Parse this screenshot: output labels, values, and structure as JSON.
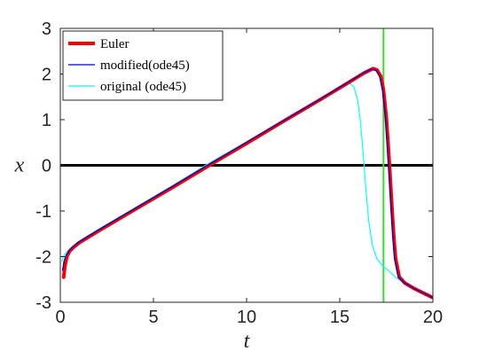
{
  "chart_data": {
    "type": "line",
    "xlabel": "t",
    "ylabel": "x",
    "xlim": [
      0,
      20
    ],
    "ylim": [
      -3,
      3
    ],
    "x_ticks": [
      0,
      5,
      10,
      15,
      20
    ],
    "y_ticks": [
      -3,
      -2,
      -1,
      0,
      1,
      2,
      3
    ],
    "x_tick_labels": [
      "0",
      "5",
      "10",
      "15",
      "20"
    ],
    "y_tick_labels": [
      "-3",
      "-2",
      "-1",
      "0",
      "1",
      "2",
      "3"
    ],
    "grid": false,
    "legend_position": "top-left",
    "series": [
      {
        "name": "Euler",
        "color": "#ff0000",
        "x": [
          0.18,
          0.25,
          0.35,
          0.5,
          0.7,
          1.0,
          2.0,
          4.0,
          6.0,
          8.0,
          10.0,
          12.0,
          14.0,
          15.5,
          16.3,
          16.8,
          17.0,
          17.2,
          17.35,
          17.5,
          17.6,
          17.7,
          17.8,
          17.9,
          18.0,
          18.2,
          18.5,
          19.0,
          19.5,
          20.0
        ],
        "y": [
          -2.45,
          -2.2,
          -2.0,
          -1.88,
          -1.8,
          -1.7,
          -1.45,
          -0.97,
          -0.49,
          0.0,
          0.48,
          0.97,
          1.45,
          1.82,
          2.02,
          2.12,
          2.09,
          1.95,
          1.65,
          1.05,
          0.45,
          -0.2,
          -0.9,
          -1.55,
          -2.05,
          -2.45,
          -2.58,
          -2.7,
          -2.8,
          -2.9
        ]
      },
      {
        "name": "modified(ode45)",
        "color": "#0000cc",
        "x": [
          0.12,
          0.2,
          0.3,
          0.5,
          0.7,
          1.0,
          2.0,
          4.0,
          6.0,
          8.0,
          10.0,
          12.0,
          14.0,
          15.5,
          16.3,
          16.7,
          16.95,
          17.15,
          17.3,
          17.45,
          17.55,
          17.65,
          17.75,
          17.85,
          17.95,
          18.15,
          18.5,
          19.0,
          19.5,
          20.0
        ],
        "y": [
          -2.3,
          -2.1,
          -1.98,
          -1.86,
          -1.78,
          -1.68,
          -1.43,
          -0.95,
          -0.47,
          0.02,
          0.5,
          0.98,
          1.46,
          1.83,
          2.03,
          2.11,
          2.08,
          1.95,
          1.65,
          1.05,
          0.45,
          -0.2,
          -0.9,
          -1.55,
          -2.05,
          -2.45,
          -2.58,
          -2.7,
          -2.8,
          -2.9
        ]
      },
      {
        "name": "original (ode45)",
        "color": "#00ffff",
        "x": [
          0.08,
          0.15,
          0.3,
          0.5,
          0.7,
          1.0,
          2.0,
          4.0,
          6.0,
          8.0,
          10.0,
          12.0,
          14.0,
          15.0,
          15.5,
          15.75,
          15.95,
          16.1,
          16.25,
          16.4,
          16.55,
          16.75,
          17.0,
          17.3,
          17.6,
          18.0,
          18.5,
          19.0,
          19.5,
          20.0
        ],
        "y": [
          -2.1,
          -2.0,
          -1.92,
          -1.83,
          -1.76,
          -1.66,
          -1.41,
          -0.93,
          -0.45,
          0.05,
          0.52,
          1.0,
          1.48,
          1.72,
          1.8,
          1.73,
          1.45,
          1.0,
          0.3,
          -0.5,
          -1.2,
          -1.75,
          -2.05,
          -2.2,
          -2.3,
          -2.45,
          -2.6,
          -2.72,
          -2.82,
          -2.9
        ]
      }
    ],
    "reference_lines": [
      {
        "orientation": "horizontal",
        "value": 0,
        "color": "#000000"
      },
      {
        "orientation": "vertical",
        "value": 17.35,
        "color": "#33dd33"
      }
    ]
  }
}
